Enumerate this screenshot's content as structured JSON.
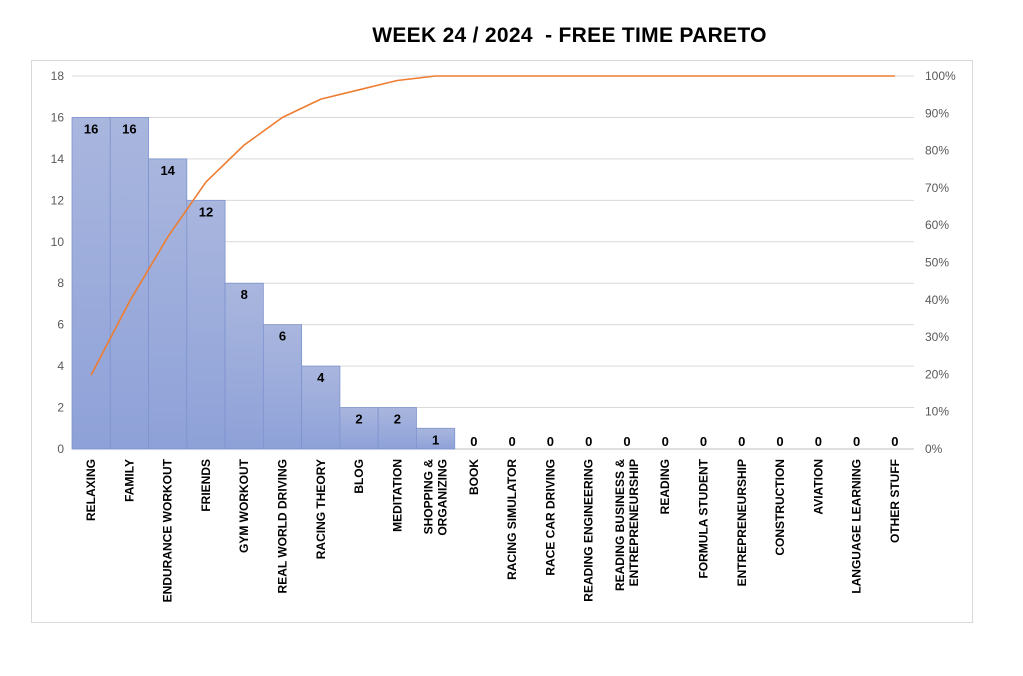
{
  "chart_data": {
    "type": "bar",
    "title": "WEEK 24 / 2024  - FREE TIME PARETO",
    "categories": [
      [
        "RELAXING"
      ],
      [
        "FAMILY"
      ],
      [
        "ENDURANCE WORKOUT"
      ],
      [
        "FRIENDS"
      ],
      [
        "GYM WORKOUT"
      ],
      [
        "REAL WORLD DRIVING"
      ],
      [
        "RACING THEORY"
      ],
      [
        "BLOG"
      ],
      [
        "MEDITATION"
      ],
      [
        "SHOPPING &",
        "ORGANIZING"
      ],
      [
        "BOOK"
      ],
      [
        "RACING SIMULATOR"
      ],
      [
        "RACE CAR DRIVING"
      ],
      [
        "READING ENGINEERING"
      ],
      [
        "READING BUSINESS &",
        "ENTREPRENEURSHIP"
      ],
      [
        "READING"
      ],
      [
        "FORMULA STUDENT"
      ],
      [
        "ENTREPRENEURSHIP"
      ],
      [
        "CONSTRUCTION"
      ],
      [
        "AVIATION"
      ],
      [
        "LANGUAGE LEARNING"
      ],
      [
        "OTHER STUFF"
      ]
    ],
    "values": [
      16,
      16,
      14,
      12,
      8,
      6,
      4,
      2,
      2,
      1,
      0,
      0,
      0,
      0,
      0,
      0,
      0,
      0,
      0,
      0,
      0,
      0
    ],
    "cumulative_percent": [
      19.8,
      39.5,
      56.8,
      71.6,
      81.5,
      88.9,
      93.8,
      96.3,
      98.8,
      100,
      100,
      100,
      100,
      100,
      100,
      100,
      100,
      100,
      100,
      100,
      100,
      100
    ],
    "ylim": [
      0,
      18
    ],
    "yticks": [
      0,
      2,
      4,
      6,
      8,
      10,
      12,
      14,
      16,
      18
    ],
    "y2lim": [
      0,
      100
    ],
    "y2ticks": [
      "0%",
      "10%",
      "20%",
      "30%",
      "40%",
      "50%",
      "60%",
      "70%",
      "80%",
      "90%",
      "100%"
    ],
    "grid": true,
    "legend": "none",
    "colors": {
      "bar_top": "#a9b6de",
      "bar_bottom": "#8ea1d8",
      "bar_edge": "#7f93cf",
      "line": "#ed7d31",
      "grid": "#d9d9d9"
    }
  }
}
